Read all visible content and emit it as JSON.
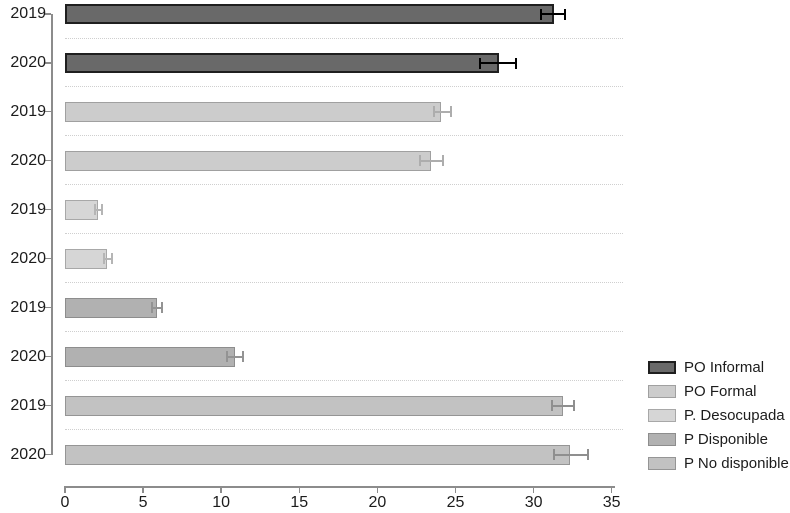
{
  "chart_data": {
    "type": "bar",
    "orientation": "horizontal",
    "title": "",
    "xlabel": "",
    "ylabel": "",
    "xlim": [
      0,
      35
    ],
    "x_ticks": [
      0,
      5,
      10,
      15,
      20,
      25,
      30,
      35
    ],
    "grid": "dotted horizontal separators between bars",
    "legend_position": "right-bottom",
    "error_bars": true,
    "groups": [
      {
        "name": "PO Informal",
        "fill": "#696969",
        "stroke": "#1f1f1f",
        "error_color": "#000000",
        "bars": [
          {
            "label": "2019",
            "value": 31.3,
            "ci_low": 30.5,
            "ci_high": 32.0
          },
          {
            "label": "2020",
            "value": 27.8,
            "ci_low": 26.6,
            "ci_high": 28.9
          }
        ]
      },
      {
        "name": "PO Formal",
        "fill": "#cccccc",
        "stroke": "#a0a0a0",
        "error_color": "#adadad",
        "bars": [
          {
            "label": "2019",
            "value": 24.1,
            "ci_low": 23.6,
            "ci_high": 24.7
          },
          {
            "label": "2020",
            "value": 23.4,
            "ci_low": 22.7,
            "ci_high": 24.2
          }
        ]
      },
      {
        "name": "P. Desocupada",
        "fill": "#d6d6d6",
        "stroke": "#a8a8a8",
        "error_color": "#b5b5b5",
        "bars": [
          {
            "label": "2019",
            "value": 2.1,
            "ci_low": 1.95,
            "ci_high": 2.35
          },
          {
            "label": "2020",
            "value": 2.7,
            "ci_low": 2.5,
            "ci_high": 3.0
          }
        ]
      },
      {
        "name": "P Disponible",
        "fill": "#b1b1b1",
        "stroke": "#8d8d8d",
        "error_color": "#939393",
        "bars": [
          {
            "label": "2019",
            "value": 5.9,
            "ci_low": 5.6,
            "ci_high": 6.2
          },
          {
            "label": "2020",
            "value": 10.9,
            "ci_low": 10.4,
            "ci_high": 11.4
          }
        ]
      },
      {
        "name": "P No disponible",
        "fill": "#c2c2c2",
        "stroke": "#959595",
        "error_color": "#8f8f8f",
        "bars": [
          {
            "label": "2019",
            "value": 31.9,
            "ci_low": 31.2,
            "ci_high": 32.6
          },
          {
            "label": "2020",
            "value": 32.3,
            "ci_low": 31.3,
            "ci_high": 33.5
          }
        ]
      }
    ],
    "legend": {
      "entries": [
        "PO Informal",
        "PO Formal",
        "P. Desocupada",
        "P Disponible",
        "P No disponible"
      ]
    },
    "axis_color": "#8c8c8c",
    "label_color": "#1c1c1c",
    "grid_color": "#cfcfcf"
  }
}
